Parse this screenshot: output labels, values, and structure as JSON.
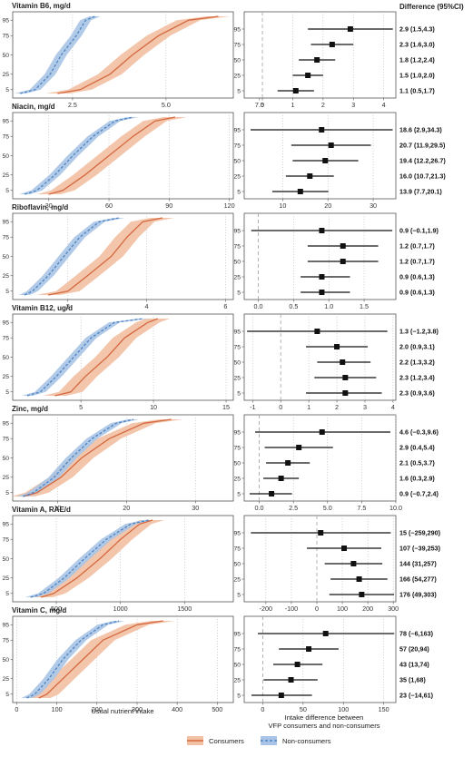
{
  "header": {
    "diff_title": "Difference (95%CI)"
  },
  "colors": {
    "consumers": "#d4683f",
    "consumers_band": "#f2c0a3",
    "nonconsumers": "#4f83c2",
    "nonconsumers_band": "#a9c4e6",
    "panel_border": "#555555",
    "grid": "#bdbdbd"
  },
  "axis_titles": {
    "left_x": "Usual nutrient intake",
    "right_x_line1": "Intake difference between",
    "right_x_line2": "VFP consumers and non-consumers"
  },
  "legend": {
    "consumers": "Consumers",
    "nonconsumers": "Non-consumers"
  },
  "chart_data": [
    {
      "type": "line",
      "title": "Vitamin B6, mg/d",
      "percentile_ticks": [
        5,
        25,
        50,
        75,
        95
      ],
      "left_xlim": [
        0.9,
        6.8
      ],
      "left_xticks": [
        "2.5",
        "5.0",
        "7.5"
      ],
      "left_xtick_values": [
        2.5,
        5.0,
        7.5
      ],
      "series": [
        {
          "name": "Non-consumers",
          "x": [
            1.1,
            1.5,
            1.9,
            2.2,
            2.6,
            2.85,
            3.1
          ],
          "y": [
            0,
            5,
            25,
            50,
            75,
            95,
            100
          ]
        },
        {
          "name": "Consumers",
          "x": [
            2.1,
            2.7,
            3.5,
            4.1,
            4.8,
            5.6,
            6.4
          ],
          "y": [
            0,
            5,
            25,
            50,
            75,
            95,
            100
          ]
        }
      ],
      "right_xlim": [
        -0.6,
        4.4
      ],
      "right_xticks": [
        "0",
        "1",
        "2",
        "3",
        "4"
      ],
      "right_xtick_values": [
        0,
        1,
        2,
        3,
        4
      ],
      "differences": [
        {
          "percentile": 95,
          "est": 2.9,
          "lo": 1.5,
          "hi": 4.3,
          "label": "2.9 (1.5,4.3)"
        },
        {
          "percentile": 75,
          "est": 2.3,
          "lo": 1.6,
          "hi": 3.0,
          "label": "2.3 (1.6,3.0)"
        },
        {
          "percentile": 50,
          "est": 1.8,
          "lo": 1.2,
          "hi": 2.4,
          "label": "1.8 (1.2,2.4)"
        },
        {
          "percentile": 25,
          "est": 1.5,
          "lo": 1.0,
          "hi": 2.0,
          "label": "1.5 (1.0,2.0)"
        },
        {
          "percentile": 5,
          "est": 1.1,
          "lo": 0.5,
          "hi": 1.7,
          "label": "1.1 (0.5,1.7)"
        }
      ]
    },
    {
      "type": "line",
      "title": "Niacin, mg/d",
      "percentile_ticks": [
        5,
        25,
        50,
        75,
        95
      ],
      "left_xlim": [
        12,
        122
      ],
      "left_xticks": [
        "30",
        "60",
        "90",
        "120"
      ],
      "left_xtick_values": [
        30,
        60,
        90,
        120
      ],
      "series": [
        {
          "name": "Non-consumers",
          "x": [
            18,
            24,
            33,
            42,
            52,
            63,
            72
          ],
          "y": [
            0,
            5,
            25,
            50,
            75,
            95,
            100
          ]
        },
        {
          "name": "Consumers",
          "x": [
            30,
            37,
            48,
            60,
            72,
            83,
            93
          ],
          "y": [
            0,
            5,
            25,
            50,
            75,
            95,
            100
          ]
        }
      ],
      "right_xlim": [
        1.5,
        35
      ],
      "right_xticks": [
        "10",
        "20",
        "30"
      ],
      "right_xtick_values": [
        10,
        20,
        30
      ],
      "differences": [
        {
          "percentile": 95,
          "est": 18.6,
          "lo": 2.9,
          "hi": 34.3,
          "label": "18.6 (2.9,34.3)"
        },
        {
          "percentile": 75,
          "est": 20.7,
          "lo": 11.9,
          "hi": 29.5,
          "label": "20.7 (11.9,29.5)"
        },
        {
          "percentile": 50,
          "est": 19.4,
          "lo": 12.2,
          "hi": 26.7,
          "label": "19.4 (12.2,26.7)"
        },
        {
          "percentile": 25,
          "est": 16.0,
          "lo": 10.7,
          "hi": 21.3,
          "label": "16.0 (10.7,21.3)"
        },
        {
          "percentile": 5,
          "est": 13.9,
          "lo": 7.7,
          "hi": 20.1,
          "label": "13.9 (7.7,20.1)"
        }
      ]
    },
    {
      "type": "line",
      "title": "Riboflavin, mg/d",
      "percentile_ticks": [
        5,
        25,
        50,
        75,
        95
      ],
      "left_xlim": [
        0.6,
        6.2
      ],
      "left_xticks": [
        "2",
        "4",
        "6"
      ],
      "left_xtick_values": [
        2,
        4,
        6
      ],
      "series": [
        {
          "name": "Non-consumers",
          "x": [
            0.9,
            1.1,
            1.5,
            1.9,
            2.3,
            2.8,
            3.3
          ],
          "y": [
            0,
            5,
            25,
            50,
            75,
            95,
            100
          ]
        },
        {
          "name": "Consumers",
          "x": [
            1.5,
            2.0,
            2.5,
            3.1,
            3.5,
            3.9,
            4.4
          ],
          "y": [
            0,
            5,
            25,
            50,
            75,
            95,
            100
          ]
        }
      ],
      "right_xlim": [
        -0.2,
        1.95
      ],
      "right_xticks": [
        "0.0",
        "0.5",
        "1.0",
        "1.5"
      ],
      "right_xtick_values": [
        0.0,
        0.5,
        1.0,
        1.5
      ],
      "differences": [
        {
          "percentile": 95,
          "est": 0.9,
          "lo": -0.1,
          "hi": 1.9,
          "label": "0.9 (−0.1,1.9)"
        },
        {
          "percentile": 75,
          "est": 1.2,
          "lo": 0.7,
          "hi": 1.7,
          "label": "1.2 (0.7,1.7)"
        },
        {
          "percentile": 50,
          "est": 1.2,
          "lo": 0.7,
          "hi": 1.7,
          "label": "1.2 (0.7,1.7)"
        },
        {
          "percentile": 25,
          "est": 0.9,
          "lo": 0.6,
          "hi": 1.3,
          "label": "0.9 (0.6,1.3)"
        },
        {
          "percentile": 5,
          "est": 0.9,
          "lo": 0.6,
          "hi": 1.3,
          "label": "0.9 (0.6,1.3)"
        }
      ]
    },
    {
      "type": "line",
      "title": "Vitamin B12, ug/d",
      "percentile_ticks": [
        5,
        25,
        50,
        75,
        95
      ],
      "left_xlim": [
        0.3,
        15.5
      ],
      "left_xticks": [
        "5",
        "10",
        "15"
      ],
      "left_xtick_values": [
        5,
        10,
        15
      ],
      "series": [
        {
          "name": "Non-consumers",
          "x": [
            1.3,
            2.2,
            3.3,
            4.5,
            5.7,
            7.3,
            9.3
          ],
          "y": [
            0,
            5,
            25,
            50,
            75,
            95,
            100
          ]
        },
        {
          "name": "Consumers",
          "x": [
            3.2,
            4.3,
            5.3,
            6.8,
            8.0,
            9.6,
            10.3
          ],
          "y": [
            0,
            5,
            25,
            50,
            75,
            95,
            100
          ]
        }
      ],
      "right_xlim": [
        -1.3,
        4.1
      ],
      "right_xticks": [
        "-1",
        "0",
        "1",
        "2",
        "3",
        "4"
      ],
      "right_xtick_values": [
        -1,
        0,
        1,
        2,
        3,
        4
      ],
      "differences": [
        {
          "percentile": 95,
          "est": 1.3,
          "lo": -1.2,
          "hi": 3.8,
          "label": "1.3 (−1.2,3.8)"
        },
        {
          "percentile": 75,
          "est": 2.0,
          "lo": 0.9,
          "hi": 3.1,
          "label": "2.0 (0.9,3.1)"
        },
        {
          "percentile": 50,
          "est": 2.2,
          "lo": 1.3,
          "hi": 3.2,
          "label": "2.2 (1.3,3.2)"
        },
        {
          "percentile": 25,
          "est": 2.3,
          "lo": 1.2,
          "hi": 3.4,
          "label": "2.3 (1.2,3.4)"
        },
        {
          "percentile": 5,
          "est": 2.3,
          "lo": 0.9,
          "hi": 3.6,
          "label": "2.3 (0.9,3.6)"
        }
      ]
    },
    {
      "type": "line",
      "title": "Zinc, mg/d",
      "percentile_ticks": [
        5,
        25,
        50,
        75,
        95
      ],
      "left_xlim": [
        3.5,
        35.5
      ],
      "left_xticks": [
        "10",
        "20",
        "30"
      ],
      "left_xtick_values": [
        10,
        20,
        30
      ],
      "series": [
        {
          "name": "Non-consumers",
          "x": [
            5,
            6.5,
            9.5,
            12,
            15,
            18.5,
            21
          ],
          "y": [
            0,
            5,
            25,
            50,
            75,
            95,
            100
          ]
        },
        {
          "name": "Consumers",
          "x": [
            5,
            7,
            10.5,
            13.5,
            17.5,
            22.5,
            26.5
          ],
          "y": [
            0,
            5,
            25,
            50,
            75,
            95,
            100
          ]
        }
      ],
      "right_xlim": [
        -1.1,
        10.0
      ],
      "right_xticks": [
        "0.0",
        "2.5",
        "5.0",
        "7.5",
        "10.0"
      ],
      "right_xtick_values": [
        0,
        2.5,
        5.0,
        7.5,
        10.0
      ],
      "differences": [
        {
          "percentile": 95,
          "est": 4.6,
          "lo": -0.3,
          "hi": 9.6,
          "label": "4.6 (−0.3,9.6)"
        },
        {
          "percentile": 75,
          "est": 2.9,
          "lo": 0.4,
          "hi": 5.4,
          "label": "2.9 (0.4,5.4)"
        },
        {
          "percentile": 50,
          "est": 2.1,
          "lo": 0.5,
          "hi": 3.7,
          "label": "2.1 (0.5,3.7)"
        },
        {
          "percentile": 25,
          "est": 1.6,
          "lo": 0.3,
          "hi": 2.9,
          "label": "1.6 (0.3,2.9)"
        },
        {
          "percentile": 5,
          "est": 0.9,
          "lo": -0.7,
          "hi": 2.4,
          "label": "0.9 (−0.7,2.4)"
        }
      ]
    },
    {
      "type": "line",
      "title": "Vitamin A, RAE/d",
      "percentile_ticks": [
        5,
        25,
        50,
        75,
        95
      ],
      "left_xlim": [
        160,
        1880
      ],
      "left_xticks": [
        "500",
        "1000",
        "1500"
      ],
      "left_xtick_values": [
        500,
        1000,
        1500
      ],
      "series": [
        {
          "name": "Non-consumers",
          "x": [
            300,
            400,
            560,
            720,
            890,
            1080,
            1220
          ],
          "y": [
            0,
            5,
            25,
            50,
            75,
            95,
            100
          ]
        },
        {
          "name": "Consumers",
          "x": [
            380,
            480,
            660,
            840,
            1000,
            1150,
            1250
          ],
          "y": [
            0,
            5,
            25,
            50,
            75,
            95,
            100
          ]
        }
      ],
      "right_xlim": [
        -285,
        310
      ],
      "right_xticks": [
        "-200",
        "-100",
        "0",
        "100",
        "200",
        "300"
      ],
      "right_xtick_values": [
        -200,
        -100,
        0,
        100,
        200,
        300
      ],
      "differences": [
        {
          "percentile": 95,
          "est": 15,
          "lo": -259,
          "hi": 290,
          "label": "15 (−259,290)"
        },
        {
          "percentile": 75,
          "est": 107,
          "lo": -39,
          "hi": 253,
          "label": "107 (−39,253)"
        },
        {
          "percentile": 50,
          "est": 144,
          "lo": 31,
          "hi": 257,
          "label": "144 (31,257)"
        },
        {
          "percentile": 25,
          "est": 166,
          "lo": 54,
          "hi": 277,
          "label": "166 (54,277)"
        },
        {
          "percentile": 5,
          "est": 176,
          "lo": 49,
          "hi": 303,
          "label": "176 (49,303)"
        }
      ]
    },
    {
      "type": "line",
      "title": "Vitamin C, mg/d",
      "percentile_ticks": [
        5,
        25,
        50,
        75,
        95
      ],
      "left_xlim": [
        -10,
        540
      ],
      "left_xticks": [
        "0",
        "100",
        "200",
        "300",
        "400",
        "500"
      ],
      "left_xtick_values": [
        0,
        100,
        200,
        300,
        400,
        500
      ],
      "series": [
        {
          "name": "Non-consumers",
          "x": [
            25,
            45,
            80,
            115,
            160,
            215,
            255
          ],
          "y": [
            0,
            5,
            25,
            50,
            75,
            95,
            100
          ]
        },
        {
          "name": "Consumers",
          "x": [
            55,
            75,
            115,
            165,
            215,
            300,
            365
          ],
          "y": [
            0,
            5,
            25,
            50,
            75,
            95,
            100
          ]
        }
      ],
      "right_xlim": [
        -23,
        165
      ],
      "right_xticks": [
        "0",
        "50",
        "100",
        "150"
      ],
      "right_xtick_values": [
        0,
        50,
        100,
        150
      ],
      "differences": [
        {
          "percentile": 95,
          "est": 78,
          "lo": -6,
          "hi": 163,
          "label": "78 (−6,163)"
        },
        {
          "percentile": 75,
          "est": 57,
          "lo": 20,
          "hi": 94,
          "label": "57 (20,94)"
        },
        {
          "percentile": 50,
          "est": 43,
          "lo": 13,
          "hi": 74,
          "label": "43 (13,74)"
        },
        {
          "percentile": 25,
          "est": 35,
          "lo": 1,
          "hi": 68,
          "label": "35 (1,68)"
        },
        {
          "percentile": 5,
          "est": 23,
          "lo": -14,
          "hi": 61,
          "label": "23 (−14,61)"
        }
      ]
    }
  ]
}
